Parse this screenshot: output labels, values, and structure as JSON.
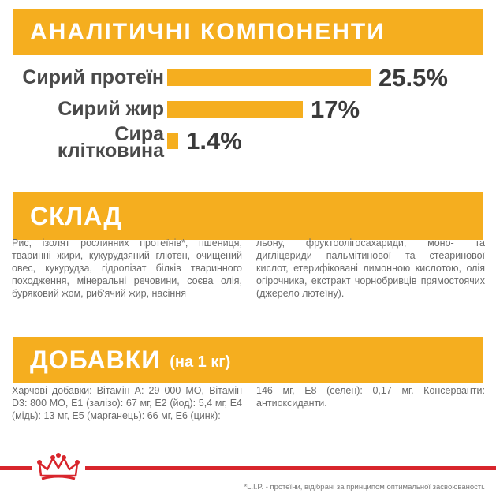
{
  "sections": {
    "analysis_title": "АНАЛІТИЧНІ КОМПОНЕНТИ",
    "composition_title": "СКЛАД",
    "additives_title": "ДОБАВКИ",
    "additives_subtitle": "(на 1 кг)"
  },
  "chart_data": {
    "type": "bar",
    "orientation": "horizontal",
    "categories": [
      "Сирий протеїн",
      "Сирий жир",
      "Сира клітковина"
    ],
    "category_lines": [
      [
        "Сирий протеїн"
      ],
      [
        "Сирий жир"
      ],
      [
        "Сира",
        "клітковина"
      ]
    ],
    "values": [
      25.5,
      17,
      1.4
    ],
    "value_labels": [
      "25.5%",
      "17%",
      "1.4%"
    ],
    "unit": "%",
    "bar_color": "#f5ae1f"
  },
  "composition": {
    "left": "Рис, ізолят рослинних протеїнів*, пшениця, тваринні жири, кукурудзяний глютен, очищений овес, кукурудза, гідролізат білків тваринного походження, мінеральні речовини, соєва олія, буряковий жом, риб'ячий жир, насіння",
    "right": "льону, фруктоолігосахариди, моно- та дигліцериди пальмітинової та стеаринової кислот, етерифіковані лимонною кислотою, олія огірочника, екстракт чорнобривців прямостоячих (джерело лютеїну)."
  },
  "additives": {
    "left": "Харчові добавки: Вітамін А: 29 000 МО, Вітамін D3: 800 МО, E1 (залізо): 67 мг, E2 (йод): 5,4 мг, E4 (мідь): 13 мг, E5 (марганець): 66 мг, E6 (цинк):",
    "right": "146 мг, E8 (селен): 0,17 мг. Консерванти: антиоксиданти."
  },
  "footnote": "*L.I.P. - протеїни, відібрані за принципом оптимальної засвоюваності.",
  "brand": {
    "logo": "royal-canin-crown-logo",
    "accent_red": "#d8252c",
    "accent_yellow": "#f5ae1f"
  }
}
